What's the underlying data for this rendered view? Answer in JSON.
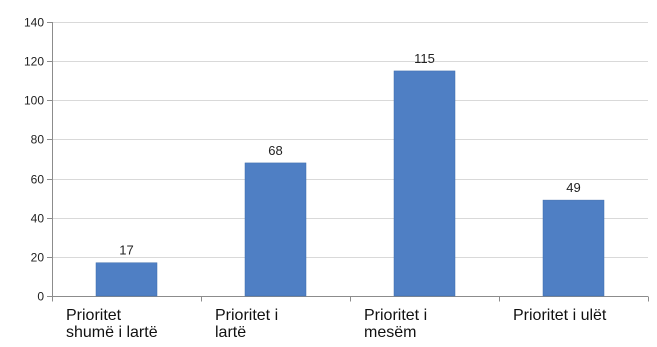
{
  "chart_data": {
    "type": "bar",
    "title": "",
    "xlabel": "",
    "ylabel": "",
    "categories": [
      [
        "Prioritet",
        "shumë i lartë"
      ],
      [
        "Prioritet  i",
        "lartë"
      ],
      [
        "Prioritet i",
        "mesëm"
      ],
      [
        "Prioritet i ulët"
      ]
    ],
    "values": [
      17,
      68,
      115,
      49
    ],
    "data_labels": [
      "17",
      "68",
      "115",
      "49"
    ],
    "ylim": [
      0,
      140
    ],
    "yticks": [
      0,
      20,
      40,
      60,
      80,
      100,
      120,
      140
    ],
    "ytick_labels": [
      "0",
      "20",
      "40",
      "60",
      "80",
      "100",
      "120",
      "140"
    ],
    "grid": true,
    "legend": "none",
    "colors": {
      "bar": "#4f7fc4",
      "bar_edge": "#3f6cab",
      "grid": "#d9d9d9",
      "axis": "#8c8c8c"
    }
  }
}
